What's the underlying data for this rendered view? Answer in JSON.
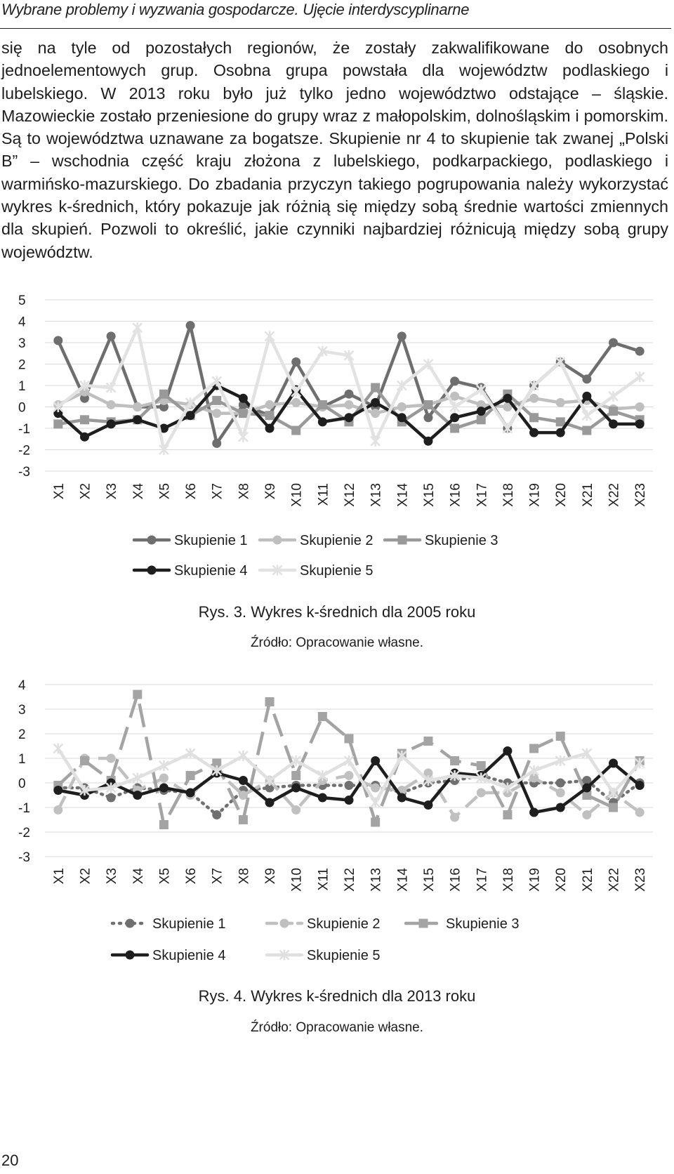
{
  "running_head": "Wybrane problemy i wyzwania gospodarcze. Ujęcie interdyscyplinarne",
  "paragraph": "się na tyle od pozostałych regionów, że zostały zakwalifikowane do osobnych jednoelementowych grup. Osobna grupa powstała dla województw podlaskiego i lubelskiego. W 2013 roku było już tylko jedno województwo odstające – śląskie. Mazowieckie zostało przeniesione do grupy wraz z małopolskim, dolnośląskim i pomorskim. Są to województwa uznawane za bogatsze. Skupienie nr 4 to skupienie tak zwanej „Polski B” – wschodnia część kraju złożona z lubelskiego, podkarpackiego, podlaskiego i warmińsko-mazurskiego. Do zbadania przyczyn takiego pogrupowania należy wykorzystać wykres k-średnich, który pokazuje jak różnią się między sobą średnie wartości zmiennych dla skupień. Pozwoli to określić, jakie czynniki najbardziej różnicują między sobą grupy województw.",
  "figure1": {
    "caption": "Rys. 3. Wykres k-średnich dla 2005 roku",
    "source": "Źródło: Opracowanie własne."
  },
  "figure2": {
    "caption": "Rys. 4. Wykres k-średnich dla 2013 roku",
    "source": "Źródło: Opracowanie własne."
  },
  "page_number": "20",
  "chart_data": [
    {
      "type": "line",
      "title": "",
      "xlabel": "",
      "ylabel": "",
      "categories": [
        "X1",
        "X2",
        "X3",
        "X4",
        "X5",
        "X6",
        "X7",
        "X8",
        "X9",
        "X10",
        "X11",
        "X12",
        "X13",
        "X14",
        "X15",
        "X16",
        "X17",
        "X18",
        "X19",
        "X20",
        "X21",
        "X22",
        "X23"
      ],
      "y_ticks": [
        "5",
        "4",
        "3",
        "2",
        "1",
        "0",
        "-1",
        "-2",
        "-3"
      ],
      "ylim": [
        -3,
        5
      ],
      "grid": true,
      "legend_position": "bottom",
      "series": [
        {
          "name": "Skupienie 1",
          "color": "#6e6e6e",
          "marker": "circle",
          "dash": "solid",
          "values": [
            3.1,
            0.4,
            3.3,
            0.0,
            0.0,
            3.8,
            -1.7,
            0.1,
            -0.4,
            2.1,
            0.0,
            0.6,
            0.0,
            3.3,
            -0.5,
            1.2,
            0.9,
            -1.0,
            1.0,
            2.1,
            1.3,
            3.0,
            2.6
          ]
        },
        {
          "name": "Skupienie 2",
          "color": "#bfbfbf",
          "marker": "circle",
          "dash": "solid",
          "values": [
            0.1,
            0.7,
            0.1,
            0.0,
            0.3,
            0.1,
            -0.3,
            -0.3,
            0.1,
            0.2,
            0.0,
            0.1,
            -0.3,
            0.0,
            0.1,
            0.5,
            0.1,
            0.0,
            0.4,
            0.2,
            0.3,
            -0.1,
            0.0
          ]
        },
        {
          "name": "Skupienie 3",
          "color": "#999999",
          "marker": "square",
          "dash": "solid",
          "values": [
            -0.8,
            -0.6,
            -0.7,
            -0.6,
            0.6,
            -0.4,
            0.3,
            -0.3,
            -0.4,
            -1.1,
            0.1,
            -0.7,
            0.9,
            -0.7,
            0.1,
            -1.0,
            -0.6,
            0.6,
            -0.5,
            -0.7,
            -1.1,
            -0.2,
            -0.6
          ]
        },
        {
          "name": "Skupienie 4",
          "color": "#1e1e1e",
          "marker": "circle",
          "dash": "solid",
          "values": [
            -0.3,
            -1.4,
            -0.8,
            -0.6,
            -1.0,
            -0.4,
            1.0,
            0.4,
            -1.0,
            0.8,
            -0.7,
            -0.5,
            0.2,
            -0.5,
            -1.6,
            -0.5,
            -0.2,
            0.4,
            -1.2,
            -1.2,
            0.5,
            -0.8,
            -0.8
          ]
        },
        {
          "name": "Skupienie 5",
          "color": "#e2e2e2",
          "marker": "x",
          "dash": "solid",
          "values": [
            0.0,
            1.0,
            0.9,
            3.7,
            -2.0,
            0.2,
            1.2,
            -1.4,
            3.3,
            0.7,
            2.6,
            2.4,
            -1.6,
            1.0,
            2.0,
            0.0,
            0.8,
            -1.0,
            1.0,
            2.1,
            -0.4,
            0.5,
            1.4
          ]
        }
      ]
    },
    {
      "type": "line",
      "title": "",
      "xlabel": "",
      "ylabel": "",
      "categories": [
        "X1",
        "X2",
        "X3",
        "X4",
        "X5",
        "X6",
        "X7",
        "X8",
        "X9",
        "X10",
        "X11",
        "X12",
        "X13",
        "X14",
        "X15",
        "X16",
        "X17",
        "X18",
        "X19",
        "X20",
        "X21",
        "X22",
        "X23"
      ],
      "y_ticks": [
        "4",
        "3",
        "2",
        "1",
        "0",
        "-1",
        "-2",
        "-3"
      ],
      "ylim": [
        -3,
        4
      ],
      "grid": true,
      "legend_position": "bottom",
      "series": [
        {
          "name": "Skupienie 1",
          "color": "#707070",
          "marker": "circle",
          "dash": "dotted",
          "values": [
            -0.2,
            -0.2,
            -0.6,
            -0.2,
            -0.3,
            -0.4,
            -1.3,
            -0.3,
            -0.2,
            -0.1,
            -0.1,
            -0.1,
            -0.1,
            -0.4,
            0.0,
            0.1,
            0.3,
            0.0,
            0.0,
            0.0,
            0.1,
            -0.8,
            0.0
          ]
        },
        {
          "name": "Skupienie 2",
          "color": "#c0c0c0",
          "marker": "circle",
          "dash": "dashed",
          "values": [
            -1.1,
            1.0,
            1.0,
            -0.3,
            0.2,
            -0.5,
            0.5,
            -0.5,
            0.1,
            -1.1,
            0.1,
            0.3,
            -0.2,
            -0.3,
            0.4,
            -1.4,
            -0.4,
            -0.4,
            0.2,
            -0.4,
            -1.3,
            -0.4,
            -1.2
          ]
        },
        {
          "name": "Skupienie 3",
          "color": "#a4a4a4",
          "marker": "square",
          "dash": "longdash",
          "values": [
            -0.1,
            0.9,
            0.1,
            3.6,
            -1.7,
            0.3,
            0.8,
            -1.5,
            3.3,
            0.3,
            2.7,
            1.8,
            -1.6,
            1.2,
            1.7,
            0.9,
            0.7,
            -1.3,
            1.4,
            1.9,
            -0.5,
            -1.0,
            0.9
          ]
        },
        {
          "name": "Skupienie 4",
          "color": "#1e1e1e",
          "marker": "circle",
          "dash": "solid",
          "values": [
            -0.3,
            -0.5,
            0.0,
            -0.5,
            -0.2,
            -0.4,
            0.4,
            0.1,
            -0.8,
            -0.2,
            -0.6,
            -0.7,
            0.9,
            -0.6,
            -0.9,
            0.4,
            0.3,
            1.3,
            -1.2,
            -1.0,
            -0.2,
            0.8,
            -0.1
          ]
        },
        {
          "name": "Skupienie 5",
          "color": "#e0e0e0",
          "marker": "x",
          "dash": "solid",
          "values": [
            1.4,
            -0.3,
            -0.2,
            0.2,
            0.7,
            1.2,
            0.5,
            1.1,
            0.1,
            0.9,
            0.3,
            0.9,
            -0.8,
            1.1,
            0.1,
            0.3,
            0.2,
            -0.2,
            0.5,
            0.9,
            1.2,
            -0.4,
            0.8
          ]
        }
      ]
    }
  ]
}
